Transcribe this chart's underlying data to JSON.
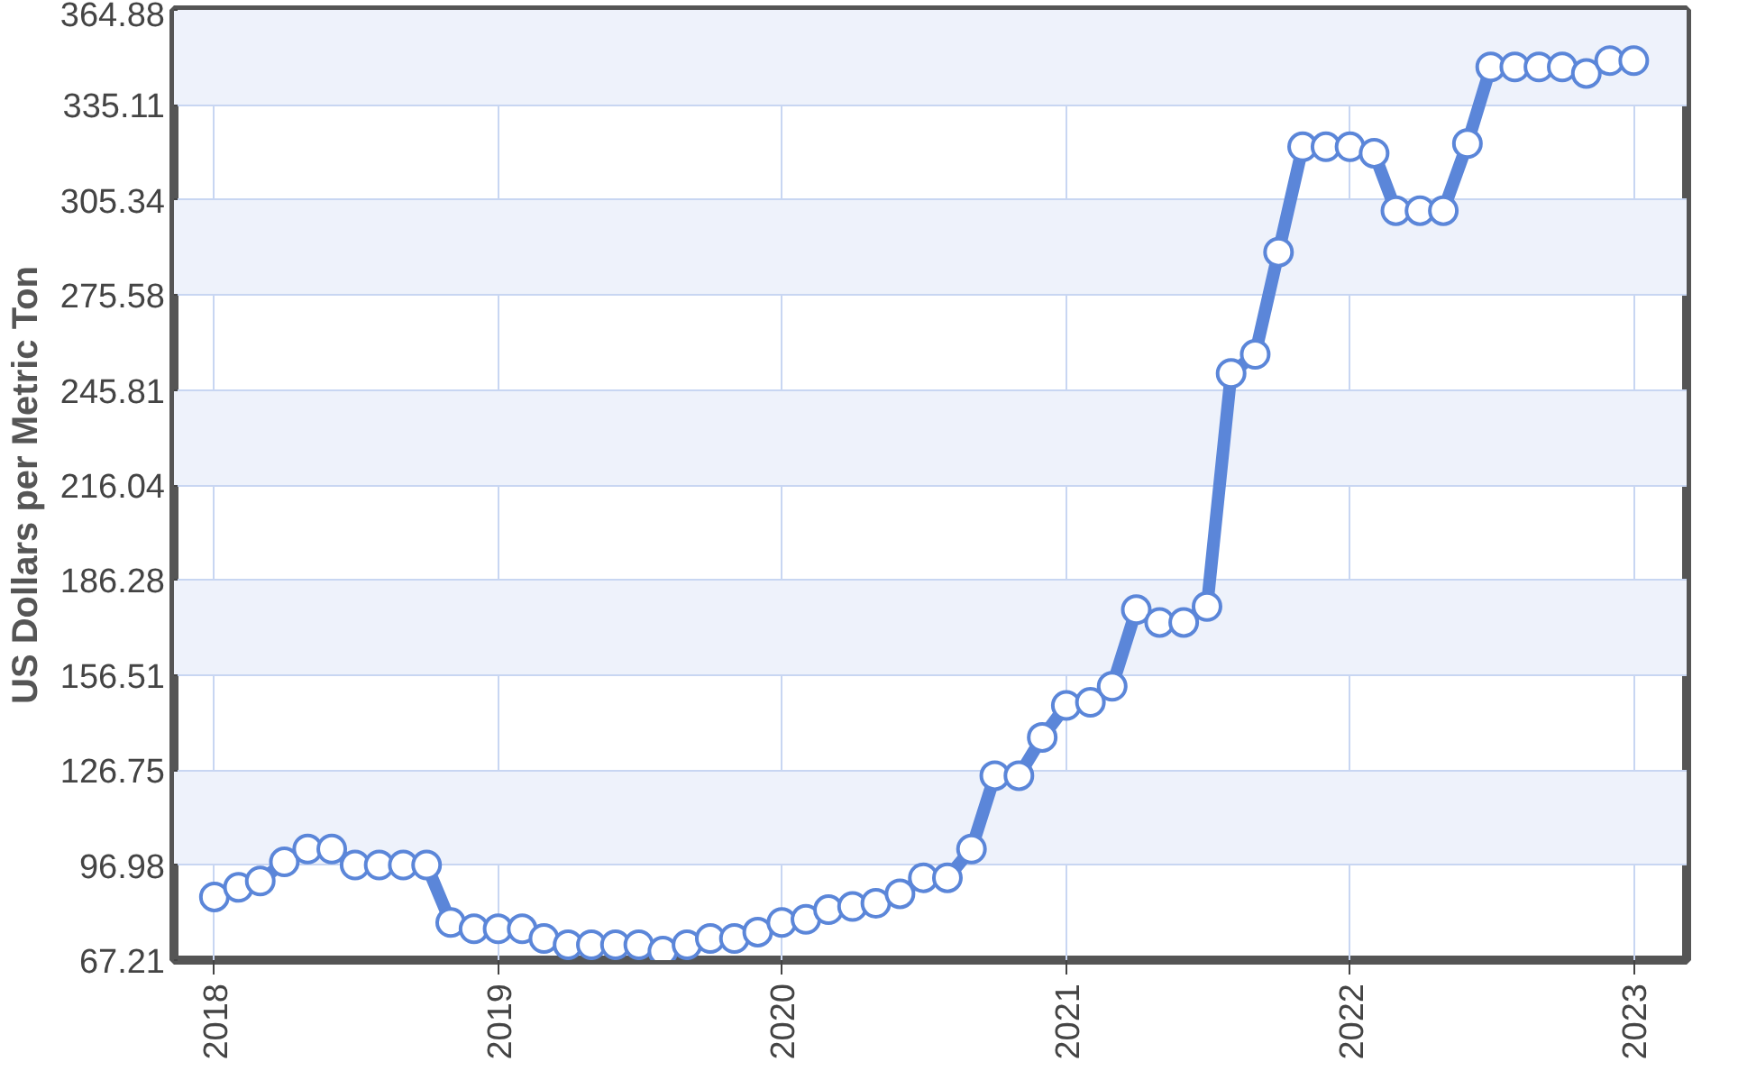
{
  "chart_data": {
    "type": "line",
    "ylabel": "US Dollars per Metric Ton",
    "x": [
      "2018-01",
      "2018-02",
      "2018-03",
      "2018-04",
      "2018-05",
      "2018-06",
      "2018-07",
      "2018-08",
      "2018-09",
      "2018-10",
      "2018-11",
      "2018-12",
      "2019-01",
      "2019-02",
      "2019-03",
      "2019-04",
      "2019-05",
      "2019-06",
      "2019-07",
      "2019-08",
      "2019-09",
      "2019-10",
      "2019-11",
      "2019-12",
      "2020-01",
      "2020-02",
      "2020-03",
      "2020-04",
      "2020-05",
      "2020-06",
      "2020-07",
      "2020-08",
      "2020-09",
      "2020-10",
      "2020-11",
      "2020-12",
      "2021-01",
      "2021-02",
      "2021-03",
      "2021-04",
      "2021-05",
      "2021-06",
      "2021-07",
      "2021-08",
      "2021-09",
      "2021-10",
      "2021-11",
      "2021-12",
      "2022-01",
      "2022-02",
      "2022-03",
      "2022-04",
      "2022-05",
      "2022-06",
      "2022-07",
      "2022-08",
      "2022-09",
      "2022-10",
      "2022-11",
      "2022-12",
      "2023-01"
    ],
    "series": [
      {
        "color": "#5b86d9",
        "values": [
          87,
          90,
          92,
          98,
          102,
          102,
          97,
          97,
          97,
          97,
          79,
          77,
          77,
          77,
          74,
          72,
          72,
          72,
          72,
          70,
          72,
          74,
          74,
          76,
          79,
          80,
          83,
          84,
          85,
          88,
          93,
          93,
          102,
          125,
          125,
          137,
          147,
          148,
          153,
          177,
          173,
          173,
          178,
          251,
          257,
          289,
          322,
          322,
          322,
          320,
          302,
          302,
          302,
          323,
          347,
          347,
          347,
          347,
          345,
          349,
          349
        ]
      }
    ],
    "xlim": [
      "2017-11-10",
      "2023-03-10"
    ],
    "xticks": [
      {
        "value": "2018-01",
        "label": "2018"
      },
      {
        "value": "2019-01",
        "label": "2019"
      },
      {
        "value": "2020-01",
        "label": "2020"
      },
      {
        "value": "2021-01",
        "label": "2021"
      },
      {
        "value": "2022-01",
        "label": "2022"
      },
      {
        "value": "2023-01",
        "label": "2023"
      }
    ],
    "ylim": [
      67.21,
      364.88
    ],
    "yticks": [
      67.21,
      96.98,
      126.75,
      156.51,
      186.28,
      216.04,
      245.81,
      275.58,
      305.34,
      335.11,
      364.88
    ],
    "grid": true,
    "marker": "circle",
    "line_style": "solid"
  }
}
